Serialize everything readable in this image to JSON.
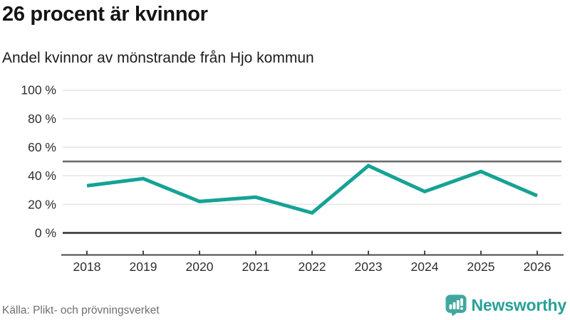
{
  "chart_data": {
    "type": "line",
    "title": "26 procent är kvinnor",
    "subtitle": "Andel kvinnor av mönstrande från Hjo kommun",
    "x": [
      2018,
      2019,
      2020,
      2021,
      2022,
      2023,
      2024,
      2025,
      2026
    ],
    "series": [
      {
        "name": "Andel kvinnor av mönstrande",
        "values": [
          33,
          38,
          22,
          25,
          14,
          47,
          29,
          43,
          26
        ]
      }
    ],
    "unit": "%",
    "ylim": [
      0,
      100
    ],
    "yticks": [
      0,
      20,
      40,
      60,
      80,
      100
    ],
    "ytick_labels": [
      "0 %",
      "20 %",
      "40 %",
      "60 %",
      "80 %",
      "100 %"
    ],
    "reference_line": 50,
    "grid": true,
    "legend": "none"
  },
  "footer": {
    "source": "Källa: Plikt- och prövningsverket",
    "brand": {
      "name": "Newsworthy",
      "icon": "newsworthy-chart-bubble-icon"
    }
  },
  "colors": {
    "line": "#16A296",
    "gridline": "#E4E4E4",
    "reference_line": "#6C6C6C",
    "zero_line": "#3E3E3E",
    "axis": "#474747",
    "tick_text": "#2E2E2E",
    "title_text": "#141414",
    "source_text": "#6F6F6F",
    "brand_icon": "#3FA79E",
    "brand_text": "#28A096"
  }
}
